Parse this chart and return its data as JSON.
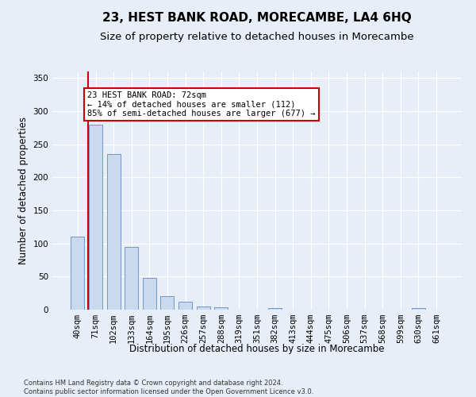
{
  "title": "23, HEST BANK ROAD, MORECAMBE, LA4 6HQ",
  "subtitle": "Size of property relative to detached houses in Morecambe",
  "xlabel": "Distribution of detached houses by size in Morecambe",
  "ylabel": "Number of detached properties",
  "categories": [
    "40sqm",
    "71sqm",
    "102sqm",
    "133sqm",
    "164sqm",
    "195sqm",
    "226sqm",
    "257sqm",
    "288sqm",
    "319sqm",
    "351sqm",
    "382sqm",
    "413sqm",
    "444sqm",
    "475sqm",
    "506sqm",
    "537sqm",
    "568sqm",
    "599sqm",
    "630sqm",
    "661sqm"
  ],
  "values": [
    110,
    280,
    235,
    95,
    48,
    20,
    12,
    5,
    4,
    0,
    0,
    3,
    0,
    0,
    0,
    0,
    0,
    0,
    0,
    2,
    0
  ],
  "bar_color": "#c9d9ee",
  "bar_edge_color": "#7096c8",
  "highlight_line_color": "#cc0000",
  "annotation_text": "23 HEST BANK ROAD: 72sqm\n← 14% of detached houses are smaller (112)\n85% of semi-detached houses are larger (677) →",
  "annotation_box_color": "#ffffff",
  "annotation_box_edge_color": "#cc0000",
  "ylim": [
    0,
    360
  ],
  "yticks": [
    0,
    50,
    100,
    150,
    200,
    250,
    300,
    350
  ],
  "background_color": "#e8eef8",
  "footer_text": "Contains HM Land Registry data © Crown copyright and database right 2024.\nContains public sector information licensed under the Open Government Licence v3.0.",
  "title_fontsize": 11,
  "subtitle_fontsize": 9.5,
  "label_fontsize": 8.5,
  "tick_fontsize": 7.5,
  "annotation_fontsize": 7.5
}
